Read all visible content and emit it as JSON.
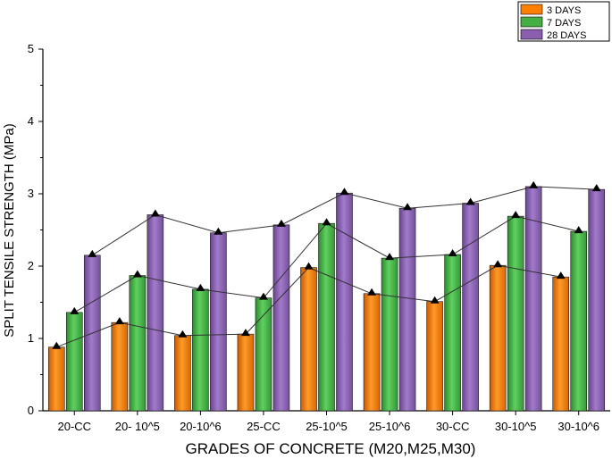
{
  "chart_data": {
    "type": "bar",
    "title": "",
    "xlabel": "GRADES OF  CONCRETE (M20,M25,M30)",
    "ylabel": "SPLIT TENSILE STRENGTH (MPa)",
    "ylim": [
      0,
      5
    ],
    "yticks": [
      "0",
      "1",
      "2",
      "3",
      "4",
      "5"
    ],
    "categories": [
      "20-CC",
      "20- 10^5",
      "20-10^6",
      "25-CC",
      "25-10^5",
      "25-10^6",
      "30-CC",
      "30-10^5",
      "30-10^6"
    ],
    "series": [
      {
        "name": "3 DAYS",
        "color": "#ff8000",
        "values": [
          0.88,
          1.22,
          1.04,
          1.06,
          1.98,
          1.62,
          1.51,
          2.01,
          1.85
        ]
      },
      {
        "name": "7 DAYS",
        "color": "#44b044",
        "values": [
          1.36,
          1.87,
          1.68,
          1.56,
          2.59,
          2.11,
          2.16,
          2.69,
          2.48
        ]
      },
      {
        "name": "28 DAYS",
        "color": "#8a5fb0",
        "values": [
          2.15,
          2.71,
          2.46,
          2.57,
          3.01,
          2.8,
          2.87,
          3.1,
          3.06
        ]
      }
    ],
    "legend_position": "top-right"
  }
}
